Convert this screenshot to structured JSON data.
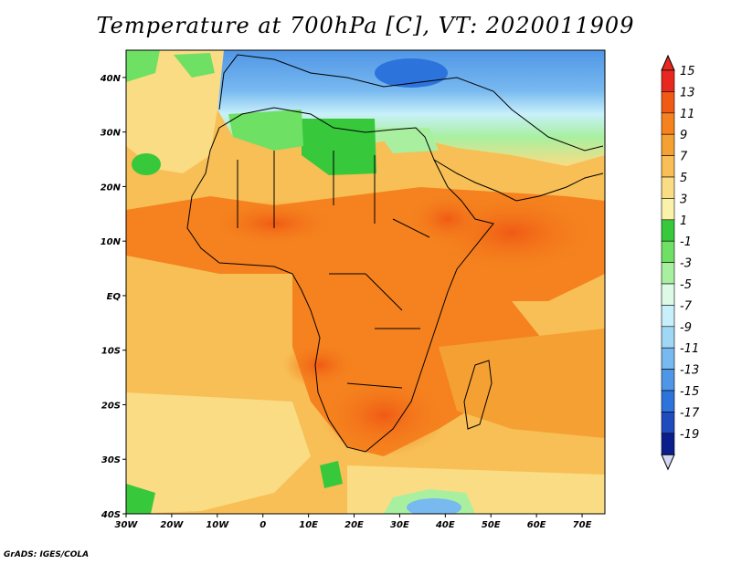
{
  "title": "Temperature at 700hPa [C], VT: 2020011909",
  "credit": "GrADS: IGES/COLA",
  "map": {
    "lon_range": [
      -30,
      75
    ],
    "lat_range": [
      -40,
      45
    ],
    "lat_labels": [
      "40N",
      "30N",
      "20N",
      "10N",
      "EQ",
      "10S",
      "20S",
      "30S",
      "40S"
    ],
    "lon_labels": [
      "30W",
      "20W",
      "10W",
      "0",
      "10E",
      "20E",
      "30E",
      "40E",
      "50E",
      "60E",
      "70E"
    ]
  },
  "colorbar": {
    "labels": [
      "15",
      "13",
      "11",
      "9",
      "7",
      "5",
      "3",
      "1",
      "-1",
      "-3",
      "-5",
      "-7",
      "-9",
      "-11",
      "-13",
      "-15",
      "-17",
      "-19"
    ],
    "colors": [
      "#e8281e",
      "#f05a14",
      "#f5821e",
      "#f5a032",
      "#f7bf55",
      "#fadc84",
      "#faf2a8",
      "#37c83c",
      "#6ee064",
      "#a8f0a0",
      "#dcfae6",
      "#c8f0fa",
      "#a0d7f5",
      "#78b9f0",
      "#5096e6",
      "#2d73dc",
      "#1e4bbe",
      "#0a1e8c",
      "#00006e"
    ]
  }
}
